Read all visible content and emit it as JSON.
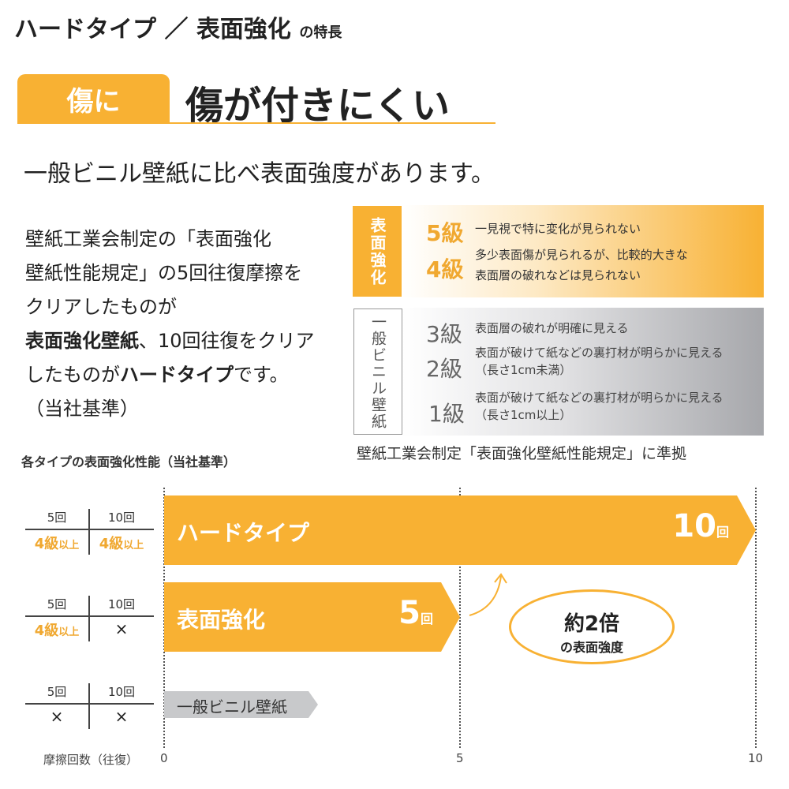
{
  "header": {
    "title_main": "ハードタイプ ／ 表面強化",
    "title_suffix": "の特長"
  },
  "section": {
    "tab": "傷に",
    "heading": "傷が付きにくい"
  },
  "lead": "一般ビニル壁紙に比べ表面強度があります。",
  "body": {
    "l1": "壁紙工業会制定の「表面強化",
    "l2": "壁紙性能規定」の5回往復摩擦を",
    "l3": "クリアしたものが",
    "l4_bold": "表面強化壁紙",
    "l4": "、10回往復をクリア",
    "l5a": "したものが",
    "l5_bold": "ハードタイプ",
    "l5b": "です。",
    "l6": "（当社基準）"
  },
  "grades": {
    "strong_label": "表面強化",
    "vinyl_label": "一般ビニル壁紙",
    "items": [
      {
        "grade": "5級",
        "desc1": "一見視で特に変化が見られない",
        "desc2": ""
      },
      {
        "grade": "4級",
        "desc1": "多少表面傷が見られるが、比較的大きな",
        "desc2": "表面層の破れなどは見られない"
      },
      {
        "grade": "3級",
        "desc1": "表面層の破れが明確に見える",
        "desc2": ""
      },
      {
        "grade": "2級",
        "desc1": "表面が破けて紙などの裏打材が明らかに見える",
        "desc2": "（長さ1cm未満）"
      },
      {
        "grade": "1級",
        "desc1": "表面が破けて紙などの裏打材が明らかに見える",
        "desc2": "（長さ1cm以上）"
      }
    ],
    "note": "壁紙工業会制定「表面強化壁紙性能規定」に準拠"
  },
  "colors": {
    "accent": "#f8b133",
    "grade_orange": "#f0a830",
    "gray": "#c8c9cb"
  },
  "chart_data": {
    "type": "bar",
    "orientation": "horizontal",
    "title": "各タイプの表面強化性能（当社基準）",
    "xlabel": "摩擦回数（往復）",
    "xlim": [
      0,
      10
    ],
    "xticks": [
      "0",
      "5",
      "10"
    ],
    "categories": [
      "ハードタイプ",
      "表面強化",
      "一般ビニル壁紙"
    ],
    "values": [
      10,
      5,
      2.6
    ],
    "value_labels": [
      "10",
      "5",
      ""
    ],
    "value_unit": "回",
    "tables": [
      {
        "h5": "5回",
        "h10": "10回",
        "v5": "4級",
        "v5s": "以上",
        "v10": "4級",
        "v10s": "以上"
      },
      {
        "h5": "5回",
        "h10": "10回",
        "v5": "4級",
        "v5s": "以上",
        "v10": "×",
        "v10s": ""
      },
      {
        "h5": "5回",
        "h10": "10回",
        "v5": "×",
        "v5s": "",
        "v10": "×",
        "v10s": ""
      }
    ],
    "annotation": {
      "main": "約2倍",
      "sub": "の表面強度"
    }
  }
}
